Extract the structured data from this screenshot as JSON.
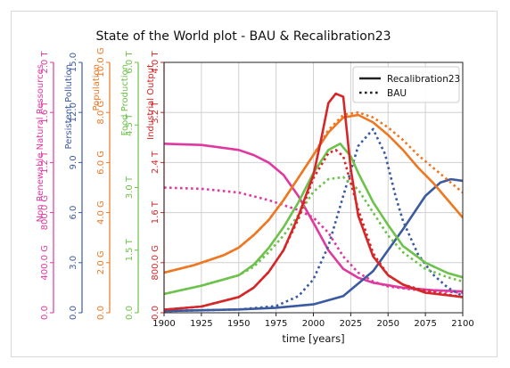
{
  "chart_data": {
    "type": "line",
    "title": "State of the World plot - BAU & Recalibration23",
    "xlabel": "time [years]",
    "xlim": [
      1900,
      2100
    ],
    "xticks": [
      1900,
      1925,
      1950,
      1975,
      2000,
      2025,
      2050,
      2075,
      2100
    ],
    "grid": true,
    "legend_position": "top-right",
    "legend": [
      {
        "label": "Recalibration23",
        "style": "solid"
      },
      {
        "label": "BAU",
        "style": "dotted"
      }
    ],
    "axes": [
      {
        "id": "nrr",
        "label": "Non Renewable Natural Ressources",
        "color": "#e0389e",
        "min": 0,
        "max": 2000,
        "ticks": [
          {
            "v": 0,
            "t": "0.0"
          },
          {
            "v": 400,
            "t": "400.0 G"
          },
          {
            "v": 800,
            "t": "800.0 G"
          },
          {
            "v": 1200,
            "t": "1.2 T"
          },
          {
            "v": 1600,
            "t": "1.6 T"
          },
          {
            "v": 2000,
            "t": "2.0 T"
          }
        ]
      },
      {
        "id": "ppol",
        "label": "Persistent Pollution",
        "color": "#3b5aa0",
        "min": 0,
        "max": 15,
        "ticks": [
          {
            "v": 0,
            "t": "0.0"
          },
          {
            "v": 3,
            "t": "3.0"
          },
          {
            "v": 6,
            "t": "6.0"
          },
          {
            "v": 9,
            "t": "9.0"
          },
          {
            "v": 12,
            "t": "12.0"
          },
          {
            "v": 15,
            "t": "15.0"
          }
        ]
      },
      {
        "id": "pop",
        "label": "Population",
        "color": "#ee7722",
        "min": 0,
        "max": 10,
        "ticks": [
          {
            "v": 0,
            "t": "0.0"
          },
          {
            "v": 2,
            "t": "2.0 G"
          },
          {
            "v": 4,
            "t": "4.0 G"
          },
          {
            "v": 6,
            "t": "6.0 G"
          },
          {
            "v": 8,
            "t": "8.0 G"
          },
          {
            "v": 10,
            "t": "10.0 G"
          }
        ]
      },
      {
        "id": "food",
        "label": "Food Production",
        "color": "#6cc24a",
        "min": 0,
        "max": 6,
        "ticks": [
          {
            "v": 0,
            "t": "0.0"
          },
          {
            "v": 1.5,
            "t": "1.5 T"
          },
          {
            "v": 3,
            "t": "3.0 T"
          },
          {
            "v": 4.5,
            "t": "4.5 T"
          },
          {
            "v": 6,
            "t": "6.0 T"
          }
        ]
      },
      {
        "id": "iout",
        "label": "Industrial Output",
        "color": "#d62728",
        "min": 0,
        "max": 4,
        "ticks": [
          {
            "v": 0,
            "t": "0.0"
          },
          {
            "v": 0.8,
            "t": "800.0 G"
          },
          {
            "v": 1.6,
            "t": "1.6 T"
          },
          {
            "v": 2.4,
            "t": "2.4 T"
          },
          {
            "v": 3.2,
            "t": "3.2 T"
          },
          {
            "v": 4,
            "t": "4.0 T"
          }
        ]
      }
    ],
    "series": [
      {
        "axis": "nrr",
        "style": "solid",
        "color": "#e0389e",
        "x": [
          1900,
          1925,
          1950,
          1960,
          1970,
          1980,
          1990,
          2000,
          2010,
          2020,
          2030,
          2040,
          2060,
          2080,
          2100
        ],
        "y": [
          1350,
          1340,
          1300,
          1260,
          1200,
          1100,
          930,
          720,
          500,
          350,
          280,
          240,
          200,
          180,
          170
        ]
      },
      {
        "axis": "nrr",
        "style": "dotted",
        "color": "#e0389e",
        "x": [
          1900,
          1925,
          1950,
          1970,
          1980,
          1990,
          2000,
          2010,
          2020,
          2030,
          2040,
          2050,
          2070,
          2100
        ],
        "y": [
          1000,
          990,
          960,
          900,
          860,
          820,
          760,
          640,
          450,
          320,
          250,
          210,
          180,
          160
        ]
      },
      {
        "axis": "ppol",
        "style": "solid",
        "color": "#3b5aa0",
        "x": [
          1900,
          1950,
          1975,
          2000,
          2020,
          2040,
          2060,
          2075,
          2085,
          2092,
          2100
        ],
        "y": [
          0.1,
          0.2,
          0.3,
          0.5,
          1.0,
          2.5,
          5.0,
          7.0,
          7.8,
          8.0,
          7.9
        ]
      },
      {
        "axis": "ppol",
        "style": "dotted",
        "color": "#3b5aa0",
        "x": [
          1900,
          1950,
          1975,
          1990,
          2000,
          2010,
          2020,
          2030,
          2040,
          2048,
          2055,
          2060,
          2070,
          2080,
          2090,
          2100
        ],
        "y": [
          0.1,
          0.2,
          0.4,
          1.0,
          2.0,
          4.0,
          7.0,
          10.0,
          11.0,
          9.5,
          7.0,
          5.5,
          3.5,
          2.3,
          1.5,
          1.0
        ]
      },
      {
        "axis": "pop",
        "style": "solid",
        "color": "#ee7722",
        "x": [
          1900,
          1920,
          1940,
          1950,
          1960,
          1970,
          1980,
          1990,
          2000,
          2010,
          2020,
          2030,
          2040,
          2050,
          2060,
          2070,
          2080,
          2090,
          2100
        ],
        "y": [
          1.6,
          1.9,
          2.3,
          2.6,
          3.1,
          3.7,
          4.5,
          5.4,
          6.3,
          7.2,
          7.8,
          7.9,
          7.6,
          7.1,
          6.5,
          5.8,
          5.2,
          4.5,
          3.8
        ]
      },
      {
        "axis": "pop",
        "style": "dotted",
        "color": "#ee7722",
        "x": [
          1900,
          1920,
          1940,
          1950,
          1960,
          1970,
          1980,
          1990,
          2000,
          2010,
          2020,
          2030,
          2040,
          2050,
          2060,
          2070,
          2080,
          2090,
          2100
        ],
        "y": [
          1.6,
          1.9,
          2.3,
          2.6,
          3.1,
          3.7,
          4.5,
          5.4,
          6.3,
          7.3,
          7.9,
          8.0,
          7.8,
          7.4,
          6.9,
          6.3,
          5.8,
          5.3,
          4.8
        ]
      },
      {
        "axis": "food",
        "style": "solid",
        "color": "#6cc24a",
        "x": [
          1900,
          1925,
          1950,
          1960,
          1970,
          1980,
          1990,
          2000,
          2010,
          2018,
          2025,
          2030,
          2040,
          2050,
          2060,
          2075,
          2090,
          2100
        ],
        "y": [
          0.45,
          0.65,
          0.9,
          1.15,
          1.55,
          2.05,
          2.65,
          3.35,
          3.9,
          4.05,
          3.75,
          3.35,
          2.65,
          2.1,
          1.6,
          1.2,
          0.95,
          0.85
        ]
      },
      {
        "axis": "food",
        "style": "dotted",
        "color": "#6cc24a",
        "x": [
          1900,
          1925,
          1950,
          1960,
          1970,
          1980,
          1990,
          2000,
          2010,
          2020,
          2030,
          2040,
          2050,
          2060,
          2075,
          2090,
          2100
        ],
        "y": [
          0.45,
          0.65,
          0.9,
          1.1,
          1.45,
          1.85,
          2.35,
          2.9,
          3.2,
          3.25,
          2.95,
          2.4,
          1.85,
          1.45,
          1.05,
          0.85,
          0.75
        ]
      },
      {
        "axis": "iout",
        "style": "solid",
        "color": "#d62728",
        "x": [
          1900,
          1925,
          1950,
          1960,
          1970,
          1980,
          1990,
          2000,
          2005,
          2010,
          2015,
          2020,
          2025,
          2030,
          2040,
          2050,
          2060,
          2075,
          2100
        ],
        "y": [
          0.05,
          0.1,
          0.25,
          0.4,
          0.65,
          1.0,
          1.55,
          2.2,
          2.75,
          3.35,
          3.5,
          3.45,
          2.3,
          1.55,
          0.9,
          0.6,
          0.45,
          0.32,
          0.25
        ]
      },
      {
        "axis": "iout",
        "style": "dotted",
        "color": "#d62728",
        "x": [
          1900,
          1925,
          1950,
          1960,
          1970,
          1980,
          1990,
          2000,
          2010,
          2015,
          2020,
          2030,
          2040,
          2050,
          2060,
          2075,
          2100
        ],
        "y": [
          0.05,
          0.1,
          0.25,
          0.4,
          0.65,
          1.0,
          1.5,
          2.15,
          2.55,
          2.6,
          2.5,
          1.65,
          0.95,
          0.6,
          0.45,
          0.35,
          0.25
        ]
      }
    ]
  }
}
